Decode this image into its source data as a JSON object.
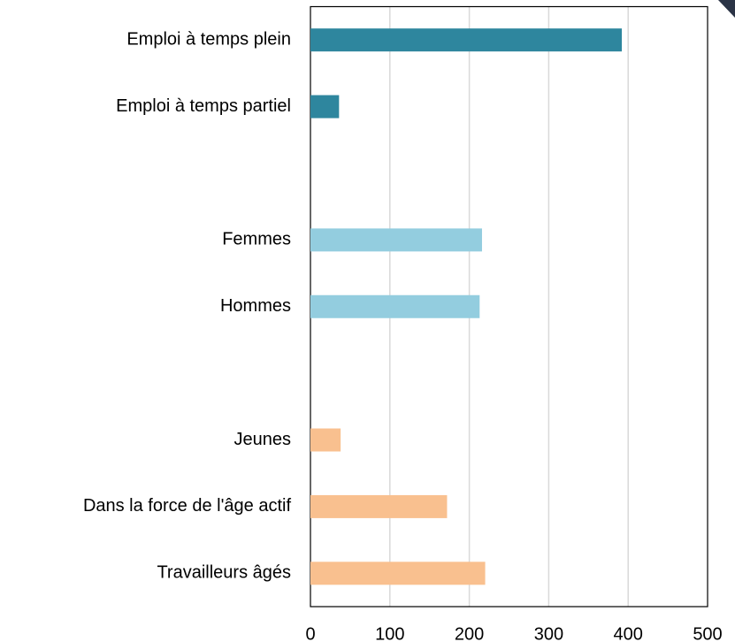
{
  "chart_data": {
    "type": "barh",
    "categories": [
      "Emploi à temps plein",
      "Emploi à temps partiel",
      null,
      "Femmes",
      "Hommes",
      null,
      "Jeunes",
      "Dans la force de l'âge actif",
      "Travailleurs âgés"
    ],
    "values": [
      392,
      36,
      null,
      216,
      213,
      null,
      38,
      172,
      220
    ],
    "colors": [
      "#2e869e",
      "#2e869e",
      null,
      "#93cddf",
      "#93cddf",
      null,
      "#f9c08f",
      "#f9c08f",
      "#f9c08f"
    ],
    "xlim": [
      0,
      500
    ],
    "xticks": [
      0,
      100,
      200,
      300,
      400,
      500
    ],
    "grid": true
  }
}
